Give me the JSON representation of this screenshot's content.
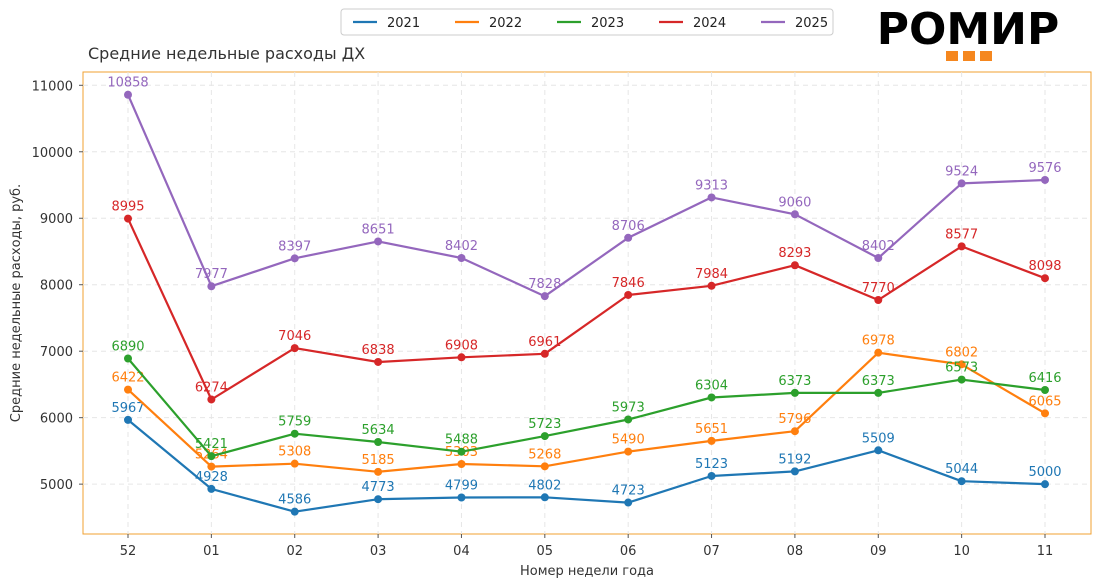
{
  "logo": {
    "text": "РОМИР",
    "accent_color": "#f5871f"
  },
  "chart_data": {
    "type": "line",
    "title": "Средние недельные расходы ДХ",
    "xlabel": "Номер недели года",
    "ylabel": "Средние недельные расходы, руб.",
    "categories": [
      "52",
      "01",
      "02",
      "03",
      "04",
      "05",
      "06",
      "07",
      "08",
      "09",
      "10",
      "11"
    ],
    "ylim": [
      4250,
      11200
    ],
    "yticks": [
      5000,
      6000,
      7000,
      8000,
      9000,
      10000,
      11000
    ],
    "grid": true,
    "legend_position": "top-center",
    "frame_color": "#f0a030",
    "series": [
      {
        "name": "2021",
        "color": "#1f77b4",
        "values": [
          5967,
          4928,
          4586,
          4773,
          4799,
          4802,
          4723,
          5123,
          5192,
          5509,
          5044,
          5000
        ]
      },
      {
        "name": "2022",
        "color": "#ff7f0e",
        "values": [
          6422,
          5264,
          5308,
          5185,
          5303,
          5268,
          5490,
          5651,
          5796,
          6978,
          6802,
          6065
        ]
      },
      {
        "name": "2023",
        "color": "#2ca02c",
        "values": [
          6890,
          5421,
          5759,
          5634,
          5488,
          5723,
          5973,
          6304,
          6373,
          6373,
          6573,
          6416
        ]
      },
      {
        "name": "2024",
        "color": "#d62728",
        "values": [
          8995,
          6274,
          7046,
          6838,
          6908,
          6961,
          7846,
          7984,
          8293,
          7770,
          8577,
          8098
        ]
      },
      {
        "name": "2025",
        "color": "#9467bd",
        "values": [
          10858,
          7977,
          8397,
          8651,
          8402,
          7828,
          8706,
          9313,
          9060,
          8402,
          9524,
          9576
        ]
      }
    ]
  }
}
